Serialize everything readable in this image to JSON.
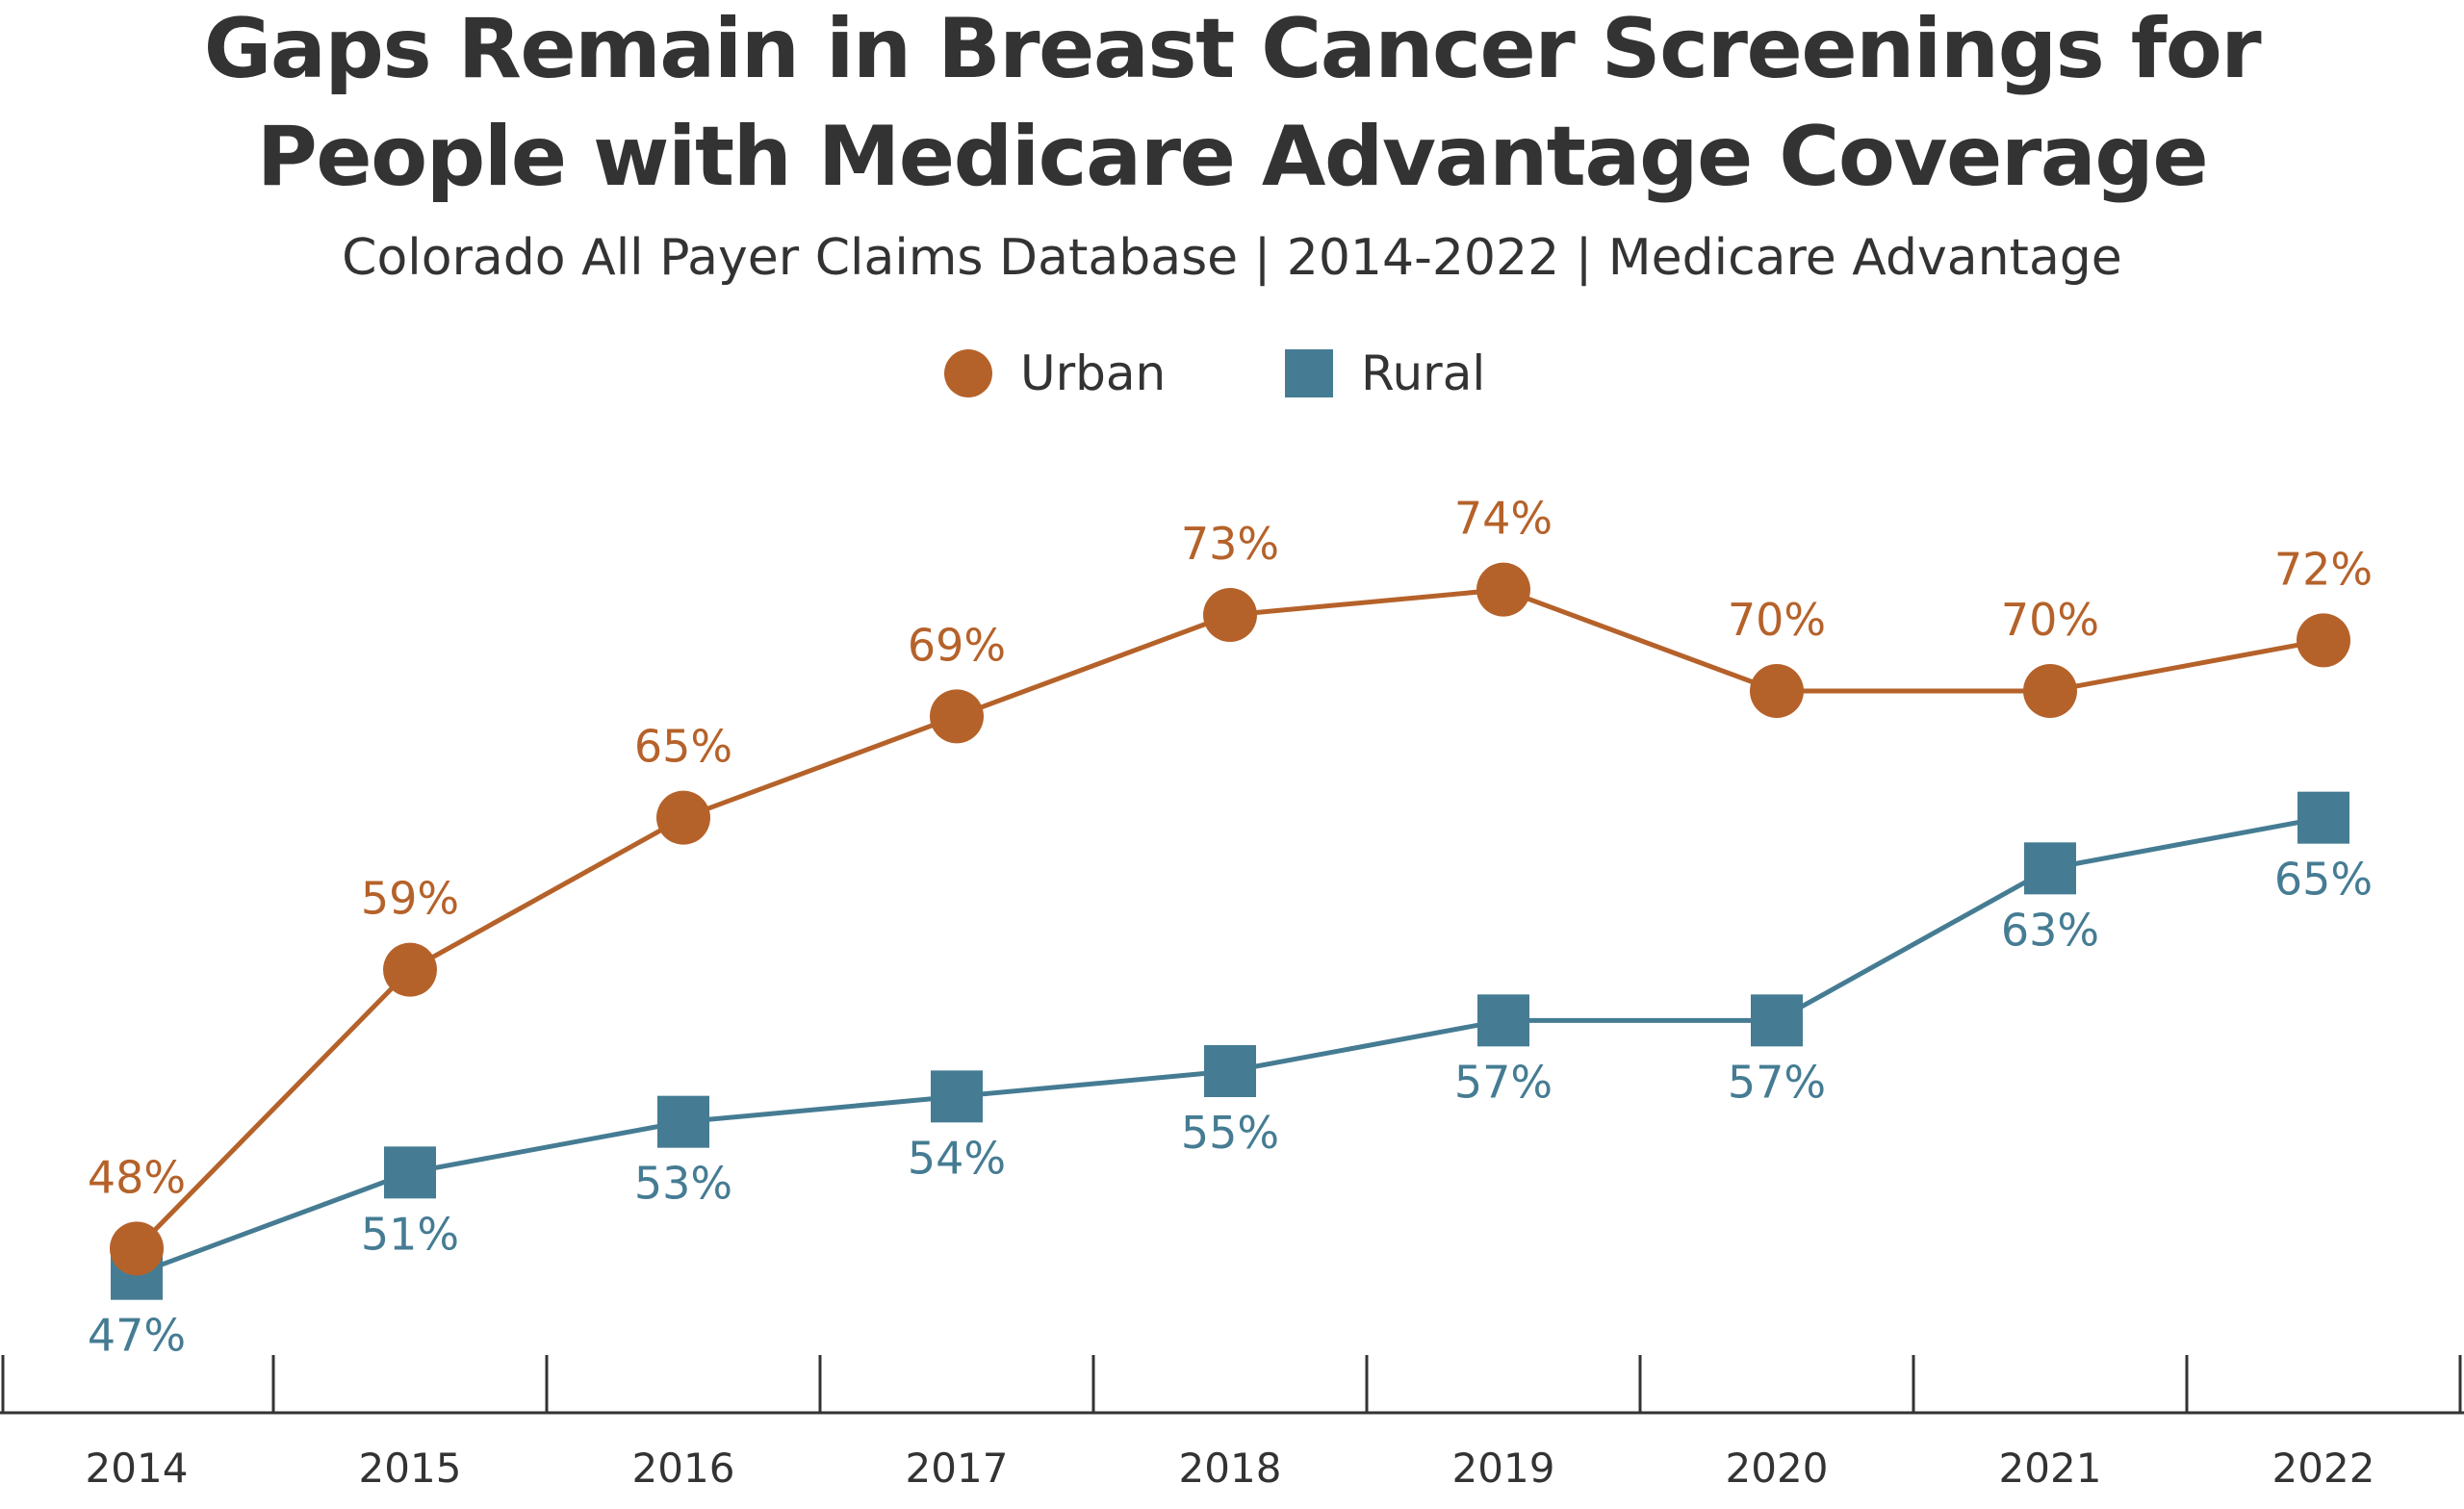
{
  "title_lines": [
    "Gaps Remain in Breast Cancer Screenings for",
    "People with Medicare Advantage Coverage"
  ],
  "subtitle": "Colorado All Payer Claims Database | 2014-2022 | Medicare Advantage",
  "colors": {
    "urban": "#b5622a",
    "rural": "#457c93",
    "axis": "#333333",
    "text": "#333333"
  },
  "legend": [
    {
      "label": "Urban",
      "marker": "circle",
      "color": "#b5622a"
    },
    {
      "label": "Rural",
      "marker": "square",
      "color": "#457c93"
    }
  ],
  "chart_data": {
    "type": "line",
    "x": [
      "2014",
      "2015",
      "2016",
      "2017",
      "2018",
      "2019",
      "2020",
      "2021",
      "2022"
    ],
    "series": [
      {
        "name": "Urban",
        "values": [
          48,
          59,
          65,
          69,
          73,
          74,
          70,
          70,
          72
        ],
        "labels": [
          "48%",
          "59%",
          "65%",
          "69%",
          "73%",
          "74%",
          "70%",
          "70%",
          "72%"
        ],
        "marker": "circle",
        "label_position": "above"
      },
      {
        "name": "Rural",
        "values": [
          47,
          51,
          53,
          54,
          55,
          57,
          57,
          63,
          65
        ],
        "labels": [
          "47%",
          "51%",
          "53%",
          "54%",
          "55%",
          "57%",
          "57%",
          "63%",
          "65%"
        ],
        "marker": "square",
        "label_position": "below"
      }
    ],
    "ylim": [
      46,
      76
    ],
    "grid": false,
    "y_axis_shown": false,
    "legend_position": "top-center"
  }
}
